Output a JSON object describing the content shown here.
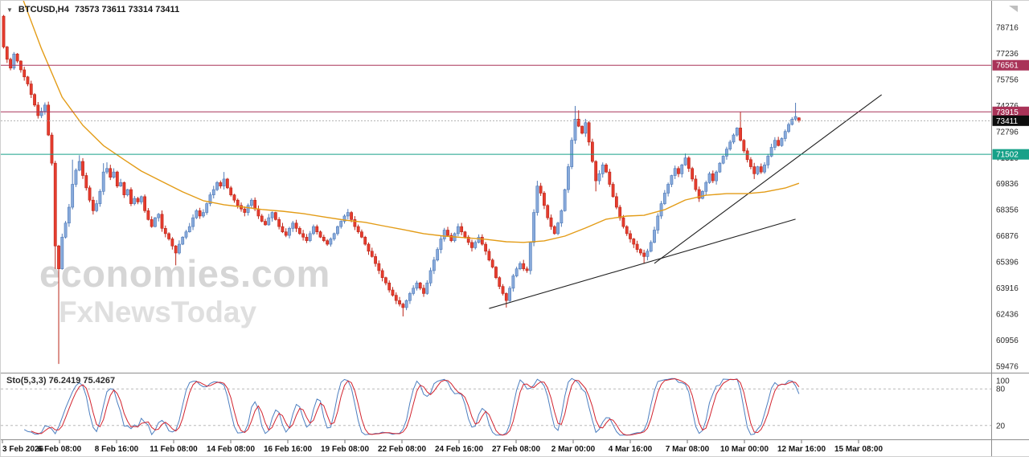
{
  "header": {
    "symbol_period": "BTCUSD,H4",
    "ohlc": "73573 73611 73314 73411"
  },
  "icons": {
    "collapse_arrow": "▼"
  },
  "watermark": {
    "line1": "economies.com",
    "line2": "FxNewsToday"
  },
  "colors": {
    "bull": "#88aadb",
    "bull_border": "#4e79b7",
    "bear": "#e63c2e",
    "bear_border": "#bb2619",
    "ma": "#e39c17",
    "level_red": "#a93358",
    "level_teal": "#17a189",
    "current_line": "#b0b0b0",
    "current_tag": "#0d0d0d",
    "trend": "#1f1f1f",
    "sto_main": "#4d7fc0",
    "sto_signal": "#d2232e",
    "axis_text": "#2a2a2a"
  },
  "price_tags": [
    {
      "label": "76561",
      "price": 76561,
      "type": "level_red"
    },
    {
      "label": "73915",
      "price": 73915,
      "type": "level_red"
    },
    {
      "label": "73411",
      "price": 73411,
      "type": "current"
    },
    {
      "label": "71502",
      "price": 71502,
      "type": "level_teal"
    }
  ],
  "indicator_panel": {
    "label": "Sto(5,3,3) 76.2419 75.4267",
    "scale": [
      100,
      80,
      20
    ],
    "dashed_levels": [
      80,
      20
    ]
  },
  "chart_data": {
    "type": "candlestick",
    "symbol": "BTCUSD",
    "timeframe": "H4",
    "current_bar": {
      "open": 73573,
      "high": 73611,
      "low": 73314,
      "close": 73411
    },
    "y_axis_ticks": [
      78716,
      77236,
      75756,
      74276,
      72796,
      71316,
      69836,
      68356,
      66876,
      65396,
      63916,
      62436,
      60956,
      59476
    ],
    "x_tick_labels": [
      "3 Feb 2026",
      "6 Feb 08:00",
      "8 Feb 16:00",
      "11 Feb 08:00",
      "14 Feb 08:00",
      "16 Feb 16:00",
      "19 Feb 08:00",
      "22 Feb 08:00",
      "24 Feb 16:00",
      "27 Feb 08:00",
      "2 Mar 00:00",
      "4 Mar 16:00",
      "7 Mar 08:00",
      "10 Mar 00:00",
      "12 Mar 16:00",
      "15 Mar 08:00"
    ],
    "horizontal_levels": [
      {
        "price": 76561,
        "color_key": "level_red",
        "style": "solid"
      },
      {
        "price": 73915,
        "color_key": "level_red",
        "style": "solid"
      },
      {
        "price": 71502,
        "color_key": "level_teal",
        "style": "solid"
      },
      {
        "price": 73411,
        "color_key": "current_line",
        "style": "dotted"
      }
    ],
    "trendlines": [
      {
        "from_bar": 141,
        "from_price": 62750,
        "to_bar": 230,
        "to_price": 67820
      },
      {
        "from_bar": 189,
        "from_price": 65310,
        "to_bar": 255,
        "to_price": 74890
      }
    ],
    "first_open": 79350,
    "closes": [
      77600,
      76900,
      76400,
      77200,
      76800,
      76300,
      75900,
      75500,
      74900,
      74300,
      73700,
      73950,
      74300,
      72600,
      71000,
      66300,
      65000,
      66800,
      67600,
      68500,
      69800,
      70600,
      71100,
      70300,
      69600,
      68900,
      68300,
      68700,
      69400,
      70500,
      70700,
      70200,
      70500,
      69700,
      69900,
      69200,
      69500,
      68700,
      69000,
      68800,
      69100,
      68300,
      67800,
      67400,
      67900,
      68100,
      67300,
      67000,
      66700,
      66300,
      65900,
      66400,
      66800,
      67100,
      67400,
      67900,
      68300,
      68000,
      68200,
      68700,
      69200,
      69500,
      69900,
      69700,
      70100,
      69600,
      69200,
      68900,
      68600,
      68400,
      68200,
      68600,
      68900,
      68400,
      68000,
      67700,
      67500,
      67900,
      68200,
      67800,
      67400,
      67100,
      66900,
      67300,
      67600,
      67300,
      67000,
      66800,
      66600,
      67000,
      67400,
      67100,
      66800,
      66600,
      66400,
      66700,
      67000,
      67400,
      67700,
      68000,
      68200,
      67800,
      67400,
      67100,
      66800,
      66400,
      66000,
      65700,
      65300,
      64900,
      64500,
      64200,
      63800,
      63500,
      63200,
      63000,
      62800,
      63200,
      63600,
      63900,
      64200,
      63900,
      63600,
      64200,
      64900,
      65500,
      66100,
      66700,
      67200,
      66900,
      66600,
      67000,
      67400,
      67100,
      66800,
      66500,
      66200,
      66500,
      66800,
      66400,
      66000,
      65500,
      65100,
      64500,
      64000,
      63600,
      63200,
      63900,
      64600,
      65000,
      65300,
      65000,
      64900,
      66500,
      68200,
      69700,
      69300,
      68600,
      67900,
      67400,
      67000,
      67600,
      68300,
      69500,
      70800,
      72300,
      73500,
      73100,
      72700,
      73300,
      72200,
      71100,
      70000,
      70400,
      70900,
      70500,
      69800,
      69100,
      68500,
      67900,
      67400,
      67000,
      66700,
      66400,
      66100,
      65900,
      65700,
      66000,
      66500,
      67200,
      68000,
      68700,
      69300,
      69800,
      70300,
      70700,
      70400,
      70900,
      71300,
      70700,
      70100,
      69500,
      69000,
      69400,
      69900,
      70400,
      70000,
      70500,
      71000,
      71400,
      71800,
      72200,
      72600,
      73000,
      72300,
      71700,
      71200,
      70800,
      70400,
      70800,
      70500,
      70900,
      71400,
      71900,
      72300,
      72000,
      72400,
      72800,
      73200,
      73500,
      73650,
      73411
    ],
    "spikes": {
      "15": {
        "low": 65000
      },
      "16": {
        "low": 59600
      },
      "20": {
        "high": 71200
      },
      "22": {
        "high": 71450
      },
      "29": {
        "high": 71000
      },
      "30": {
        "high": 71050
      },
      "50": {
        "low": 65200
      },
      "64": {
        "high": 70500
      },
      "100": {
        "high": 68400
      },
      "116": {
        "low": 62300
      },
      "146": {
        "low": 62800
      },
      "155": {
        "high": 70000
      },
      "166": {
        "high": 74250
      },
      "167": {
        "high": 74000
      },
      "172": {
        "low": 69400
      },
      "186": {
        "low": 65300
      },
      "198": {
        "high": 71550
      },
      "202": {
        "low": 68800
      },
      "214": {
        "high": 73900
      },
      "218": {
        "low": 70100
      },
      "230": {
        "high": 74430
      }
    },
    "ma_points": [
      [
        4,
        81200
      ],
      [
        6,
        80100
      ],
      [
        11,
        77500
      ],
      [
        17,
        74750
      ],
      [
        23,
        73150
      ],
      [
        29,
        72000
      ],
      [
        35,
        71200
      ],
      [
        40,
        70550
      ],
      [
        46,
        69960
      ],
      [
        52,
        69370
      ],
      [
        58,
        68870
      ],
      [
        64,
        68640
      ],
      [
        70,
        68500
      ],
      [
        75,
        68370
      ],
      [
        81,
        68270
      ],
      [
        87,
        68140
      ],
      [
        93,
        67950
      ],
      [
        99,
        67770
      ],
      [
        105,
        67640
      ],
      [
        110,
        67450
      ],
      [
        116,
        67230
      ],
      [
        122,
        67000
      ],
      [
        128,
        66860
      ],
      [
        134,
        66770
      ],
      [
        140,
        66680
      ],
      [
        146,
        66540
      ],
      [
        151,
        66500
      ],
      [
        157,
        66590
      ],
      [
        163,
        66860
      ],
      [
        169,
        67320
      ],
      [
        175,
        67820
      ],
      [
        181,
        68000
      ],
      [
        186,
        68040
      ],
      [
        192,
        68360
      ],
      [
        198,
        68910
      ],
      [
        204,
        69180
      ],
      [
        210,
        69270
      ],
      [
        216,
        69270
      ],
      [
        221,
        69360
      ],
      [
        227,
        69590
      ],
      [
        231,
        69860
      ]
    ],
    "stochastic": {
      "k_period": 5,
      "slowing": 3,
      "d_period": 3,
      "current_k": 76.2419,
      "current_d": 75.4267
    }
  }
}
